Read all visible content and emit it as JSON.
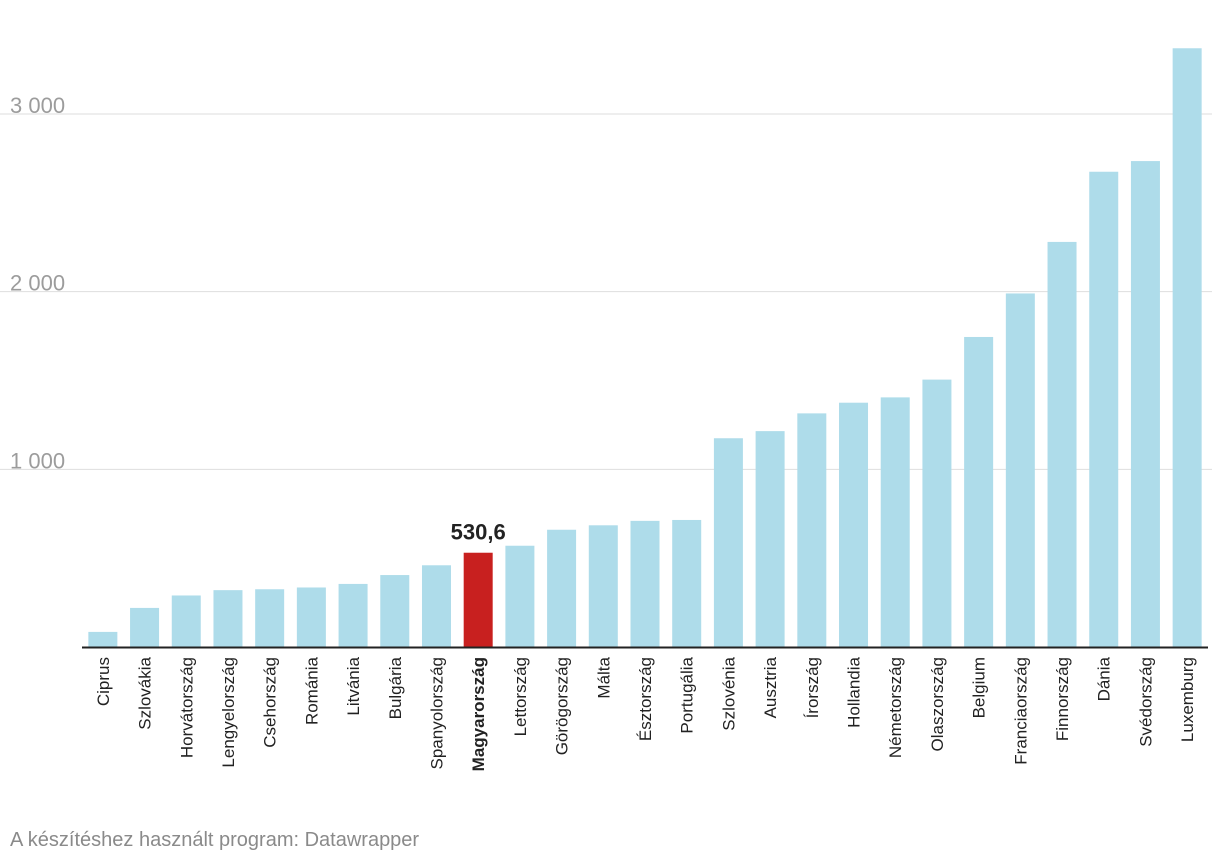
{
  "chart_data": {
    "type": "bar",
    "categories": [
      "Ciprus",
      "Szlovákia",
      "Horvátország",
      "Lengyelország",
      "Csehország",
      "Románia",
      "Litvánia",
      "Bulgária",
      "Spanyolország",
      "Magyarország",
      "Lettország",
      "Görögország",
      "Málta",
      "Észtország",
      "Portugália",
      "Szlovénia",
      "Ausztria",
      "Írország",
      "Hollandia",
      "Németország",
      "Olaszország",
      "Belgium",
      "Franciaország",
      "Finnország",
      "Dánia",
      "Svédország",
      "Luxemburg"
    ],
    "values": [
      85,
      220,
      290,
      320,
      325,
      335,
      355,
      405,
      460,
      530.6,
      570,
      660,
      685,
      710,
      715,
      1175,
      1215,
      1315,
      1375,
      1405,
      1505,
      1745,
      1990,
      2280,
      2675,
      2735,
      3370
    ],
    "highlight": {
      "category": "Magyarország",
      "label": "530,6",
      "color": "#c8201f"
    },
    "bar_color": "#aedcea",
    "yticks": [
      1000,
      2000,
      3000
    ],
    "ytick_labels": [
      "1 000",
      "2 000",
      "3 000"
    ],
    "ylim": [
      0,
      3500
    ],
    "title": "",
    "xlabel": "",
    "ylabel": "",
    "grid": true
  },
  "footer": {
    "credit": "A készítéshez használt program: Datawrapper"
  }
}
